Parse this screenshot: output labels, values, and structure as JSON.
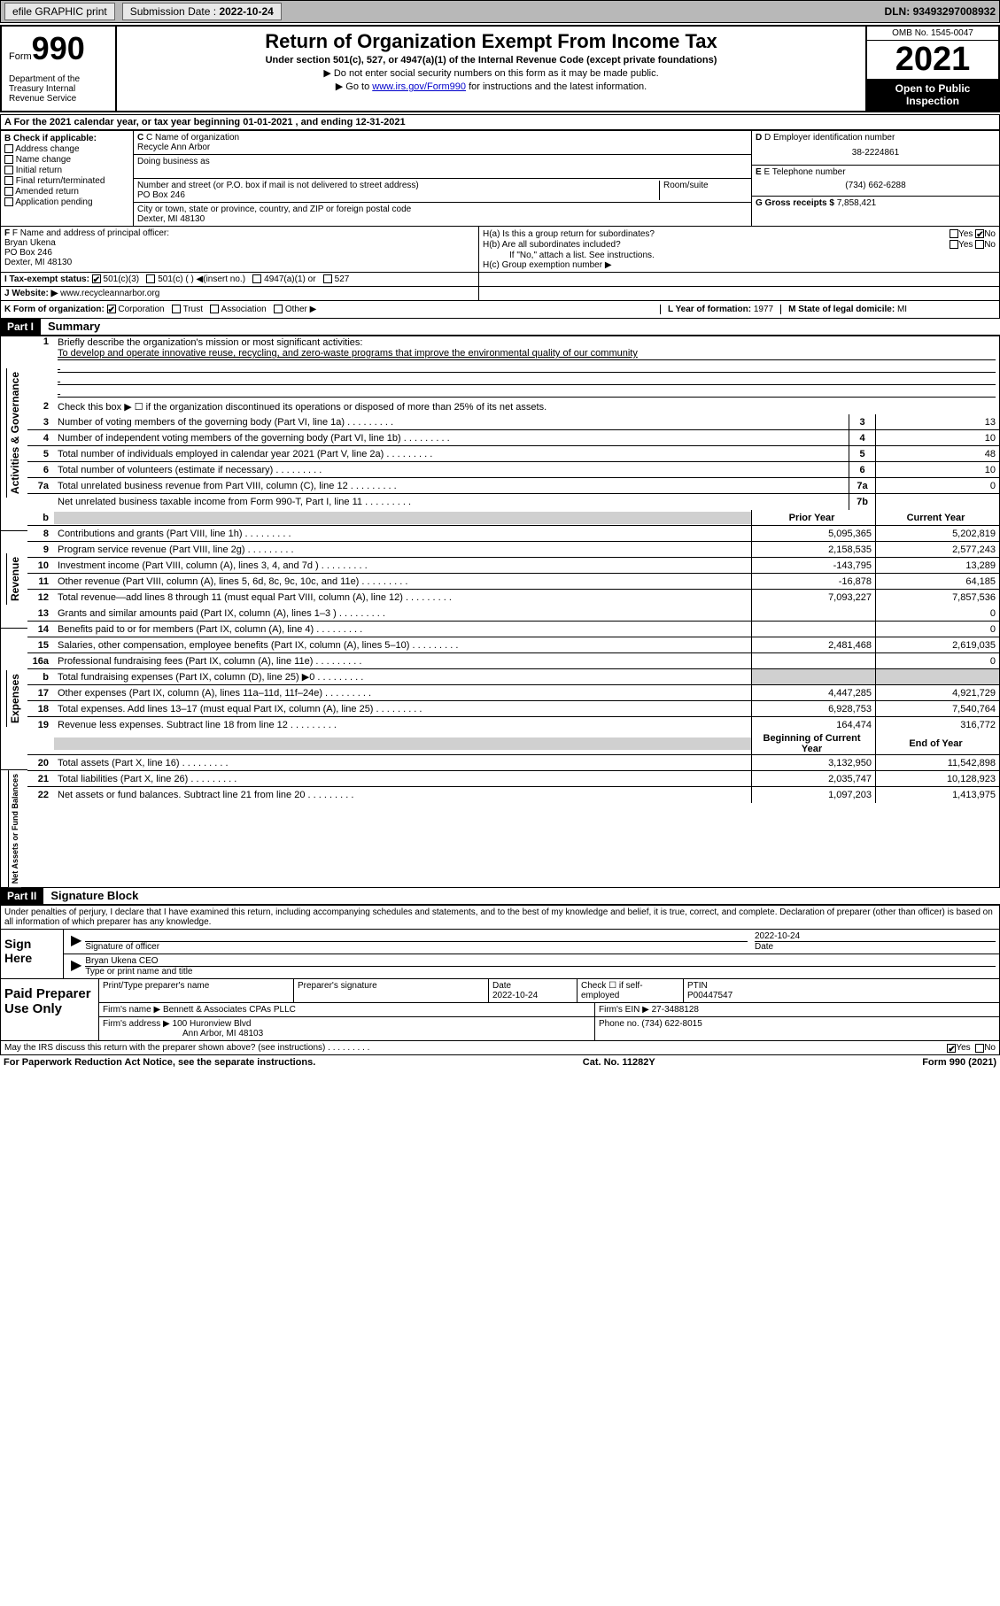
{
  "topbar": {
    "efile": "efile GRAPHIC print",
    "submission_label": "Submission Date :",
    "submission_date": "2022-10-24",
    "dln_label": "DLN:",
    "dln": "93493297008932"
  },
  "header": {
    "form_word": "Form",
    "form_num": "990",
    "dept": "Department of the Treasury Internal Revenue Service",
    "title": "Return of Organization Exempt From Income Tax",
    "subtitle": "Under section 501(c), 527, or 4947(a)(1) of the Internal Revenue Code (except private foundations)",
    "instr1": "▶ Do not enter social security numbers on this form as it may be made public.",
    "instr2_pre": "▶ Go to ",
    "instr2_link": "www.irs.gov/Form990",
    "instr2_post": " for instructions and the latest information.",
    "omb": "OMB No. 1545-0047",
    "year": "2021",
    "open": "Open to Public Inspection"
  },
  "section_a": {
    "text_pre": "A For the 2021 calendar year, or tax year beginning ",
    "begin": "01-01-2021",
    "mid": " , and ending ",
    "end": "12-31-2021"
  },
  "col_b": {
    "label": "B Check if applicable:",
    "items": [
      "Address change",
      "Name change",
      "Initial return",
      "Final return/terminated",
      "Amended return",
      "Application pending"
    ]
  },
  "col_c": {
    "name_label": "C Name of organization",
    "name": "Recycle Ann Arbor",
    "dba_label": "Doing business as",
    "addr_label": "Number and street (or P.O. box if mail is not delivered to street address)",
    "room_label": "Room/suite",
    "addr": "PO Box 246",
    "city_label": "City or town, state or province, country, and ZIP or foreign postal code",
    "city": "Dexter, MI  48130"
  },
  "col_de": {
    "d_label": "D Employer identification number",
    "d_val": "38-2224861",
    "e_label": "E Telephone number",
    "e_val": "(734) 662-6288",
    "g_label": "G Gross receipts $",
    "g_val": "7,858,421"
  },
  "col_f": {
    "label": "F Name and address of principal officer:",
    "name": "Bryan Ukena",
    "addr1": "PO Box 246",
    "addr2": "Dexter, MI  48130"
  },
  "col_h": {
    "ha": "H(a)  Is this a group return for subordinates?",
    "hb": "H(b)  Are all subordinates included?",
    "hb_note": "If \"No,\" attach a list. See instructions.",
    "hc": "H(c)  Group exemption number ▶",
    "yes": "Yes",
    "no": "No"
  },
  "row_i": {
    "label": "I   Tax-exempt status:",
    "opts": [
      "501(c)(3)",
      "501(c) (  ) ◀(insert no.)",
      "4947(a)(1) or",
      "527"
    ]
  },
  "row_j": {
    "label": "J   Website: ▶",
    "val": "www.recycleannarbor.org"
  },
  "row_k": {
    "label": "K Form of organization:",
    "opts": [
      "Corporation",
      "Trust",
      "Association",
      "Other ▶"
    ],
    "l_label": "L Year of formation:",
    "l_val": "1977",
    "m_label": "M State of legal domicile:",
    "m_val": "MI"
  },
  "part1": {
    "header": "Part I",
    "title": "Summary",
    "vtabs": [
      "Activities & Governance",
      "Revenue",
      "Expenses",
      "Net Assets or Fund Balances"
    ],
    "line1_label": "Briefly describe the organization's mission or most significant activities:",
    "line1_val": "To develop and operate innovative reuse, recycling, and zero-waste programs that improve the environmental quality of our community",
    "line2": "Check this box ▶ ☐  if the organization discontinued its operations or disposed of more than 25% of its net assets.",
    "col_prior": "Prior Year",
    "col_current": "Current Year",
    "col_begin": "Beginning of Current Year",
    "col_end": "End of Year",
    "rows_gov": [
      {
        "n": "3",
        "d": "Number of voting members of the governing body (Part VI, line 1a)",
        "box": "3",
        "v": "13"
      },
      {
        "n": "4",
        "d": "Number of independent voting members of the governing body (Part VI, line 1b)",
        "box": "4",
        "v": "10"
      },
      {
        "n": "5",
        "d": "Total number of individuals employed in calendar year 2021 (Part V, line 2a)",
        "box": "5",
        "v": "48"
      },
      {
        "n": "6",
        "d": "Total number of volunteers (estimate if necessary)",
        "box": "6",
        "v": "10"
      },
      {
        "n": "7a",
        "d": "Total unrelated business revenue from Part VIII, column (C), line 12",
        "box": "7a",
        "v": "0"
      },
      {
        "n": "",
        "d": "Net unrelated business taxable income from Form 990-T, Part I, line 11",
        "box": "7b",
        "v": ""
      }
    ],
    "rows_rev": [
      {
        "n": "8",
        "d": "Contributions and grants (Part VIII, line 1h)",
        "p": "5,095,365",
        "c": "5,202,819"
      },
      {
        "n": "9",
        "d": "Program service revenue (Part VIII, line 2g)",
        "p": "2,158,535",
        "c": "2,577,243"
      },
      {
        "n": "10",
        "d": "Investment income (Part VIII, column (A), lines 3, 4, and 7d )",
        "p": "-143,795",
        "c": "13,289"
      },
      {
        "n": "11",
        "d": "Other revenue (Part VIII, column (A), lines 5, 6d, 8c, 9c, 10c, and 11e)",
        "p": "-16,878",
        "c": "64,185"
      },
      {
        "n": "12",
        "d": "Total revenue—add lines 8 through 11 (must equal Part VIII, column (A), line 12)",
        "p": "7,093,227",
        "c": "7,857,536"
      }
    ],
    "rows_exp": [
      {
        "n": "13",
        "d": "Grants and similar amounts paid (Part IX, column (A), lines 1–3 )",
        "p": "",
        "c": "0"
      },
      {
        "n": "14",
        "d": "Benefits paid to or for members (Part IX, column (A), line 4)",
        "p": "",
        "c": "0"
      },
      {
        "n": "15",
        "d": "Salaries, other compensation, employee benefits (Part IX, column (A), lines 5–10)",
        "p": "2,481,468",
        "c": "2,619,035"
      },
      {
        "n": "16a",
        "d": "Professional fundraising fees (Part IX, column (A), line 11e)",
        "p": "",
        "c": "0"
      },
      {
        "n": "b",
        "d": "Total fundraising expenses (Part IX, column (D), line 25) ▶0",
        "p": "grey",
        "c": "grey"
      },
      {
        "n": "17",
        "d": "Other expenses (Part IX, column (A), lines 11a–11d, 11f–24e)",
        "p": "4,447,285",
        "c": "4,921,729"
      },
      {
        "n": "18",
        "d": "Total expenses. Add lines 13–17 (must equal Part IX, column (A), line 25)",
        "p": "6,928,753",
        "c": "7,540,764"
      },
      {
        "n": "19",
        "d": "Revenue less expenses. Subtract line 18 from line 12",
        "p": "164,474",
        "c": "316,772"
      }
    ],
    "rows_net": [
      {
        "n": "20",
        "d": "Total assets (Part X, line 16)",
        "p": "3,132,950",
        "c": "11,542,898"
      },
      {
        "n": "21",
        "d": "Total liabilities (Part X, line 26)",
        "p": "2,035,747",
        "c": "10,128,923"
      },
      {
        "n": "22",
        "d": "Net assets or fund balances. Subtract line 21 from line 20",
        "p": "1,097,203",
        "c": "1,413,975"
      }
    ]
  },
  "part2": {
    "header": "Part II",
    "title": "Signature Block",
    "decl": "Under penalties of perjury, I declare that I have examined this return, including accompanying schedules and statements, and to the best of my knowledge and belief, it is true, correct, and complete. Declaration of preparer (other than officer) is based on all information of which preparer has any knowledge.",
    "sign_here": "Sign Here",
    "sig_officer": "Signature of officer",
    "sig_date": "Date",
    "sig_date_val": "2022-10-24",
    "sig_name": "Bryan Ukena CEO",
    "sig_name_label": "Type or print name and title",
    "paid": "Paid Preparer Use Only",
    "prep_name_label": "Print/Type preparer's name",
    "prep_sig_label": "Preparer's signature",
    "prep_date_label": "Date",
    "prep_date": "2022-10-24",
    "prep_check": "Check ☐ if self-employed",
    "ptin_label": "PTIN",
    "ptin": "P00447547",
    "firm_name_label": "Firm's name    ▶",
    "firm_name": "Bennett & Associates CPAs PLLC",
    "firm_ein_label": "Firm's EIN ▶",
    "firm_ein": "27-3488128",
    "firm_addr_label": "Firm's address ▶",
    "firm_addr1": "100 Huronview Blvd",
    "firm_addr2": "Ann Arbor, MI  48103",
    "phone_label": "Phone no.",
    "phone": "(734) 622-8015",
    "discuss": "May the IRS discuss this return with the preparer shown above? (see instructions)",
    "yes": "Yes",
    "no": "No"
  },
  "footer": {
    "left": "For Paperwork Reduction Act Notice, see the separate instructions.",
    "mid": "Cat. No. 11282Y",
    "right": "Form 990 (2021)"
  }
}
